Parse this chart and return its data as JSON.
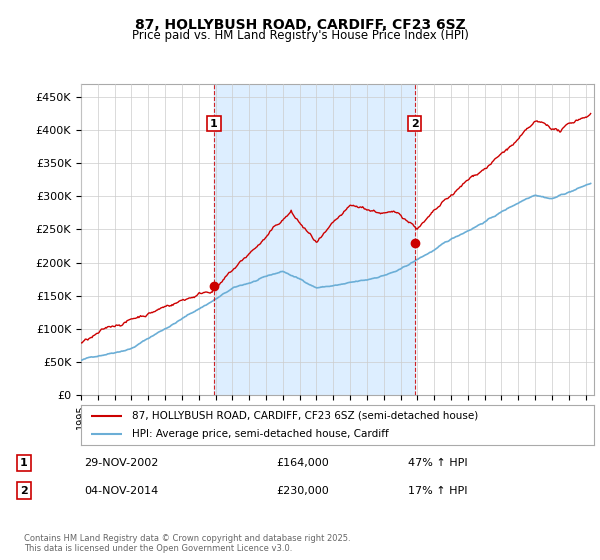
{
  "title_line1": "87, HOLLYBUSH ROAD, CARDIFF, CF23 6SZ",
  "title_line2": "Price paid vs. HM Land Registry's House Price Index (HPI)",
  "xlim_start": 1995.0,
  "xlim_end": 2025.5,
  "ylim_min": 0,
  "ylim_max": 470000,
  "yticks": [
    0,
    50000,
    100000,
    150000,
    200000,
    250000,
    300000,
    350000,
    400000,
    450000
  ],
  "ytick_labels": [
    "£0",
    "£50K",
    "£100K",
    "£150K",
    "£200K",
    "£250K",
    "£300K",
    "£350K",
    "£400K",
    "£450K"
  ],
  "xticks": [
    1995,
    1996,
    1997,
    1998,
    1999,
    2000,
    2001,
    2002,
    2003,
    2004,
    2005,
    2006,
    2007,
    2008,
    2009,
    2010,
    2011,
    2012,
    2013,
    2014,
    2015,
    2016,
    2017,
    2018,
    2019,
    2020,
    2021,
    2022,
    2023,
    2024,
    2025
  ],
  "sale1_x": 2002.91,
  "sale1_y": 164000,
  "sale1_label": "1",
  "sale2_x": 2014.84,
  "sale2_y": 230000,
  "sale2_label": "2",
  "red_color": "#cc0000",
  "blue_color": "#6baed6",
  "shade_color": "#ddeeff",
  "vline_color": "#cc0000",
  "legend_label_red": "87, HOLLYBUSH ROAD, CARDIFF, CF23 6SZ (semi-detached house)",
  "legend_label_blue": "HPI: Average price, semi-detached house, Cardiff",
  "copyright": "Contains HM Land Registry data © Crown copyright and database right 2025.\nThis data is licensed under the Open Government Licence v3.0.",
  "background_color": "#ffffff",
  "plot_bg_color": "#ffffff",
  "grid_color": "#cccccc"
}
